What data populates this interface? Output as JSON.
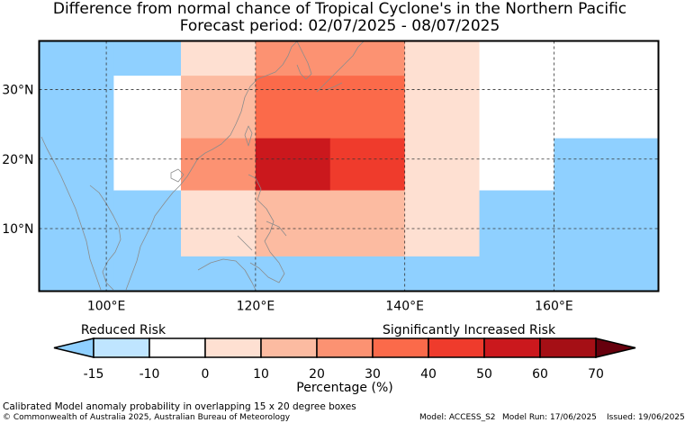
{
  "title": "Difference from normal chance of Tropical Cyclone's in the Northern Pacific",
  "subtitle": "Forecast period: 02/07/2025 - 08/07/2025",
  "map": {
    "lon_range": [
      91,
      174
    ],
    "lat_range": [
      1,
      37
    ],
    "x_ticks": [
      {
        "value": 100,
        "label": "100°E"
      },
      {
        "value": 120,
        "label": "120°E"
      },
      {
        "value": 140,
        "label": "140°E"
      },
      {
        "value": 160,
        "label": "160°E"
      }
    ],
    "y_ticks": [
      {
        "value": 30,
        "label": "30°N"
      },
      {
        "value": 20,
        "label": "20°N"
      },
      {
        "value": 10,
        "label": "10°N"
      }
    ],
    "grid": true
  },
  "grid_cells": [
    {
      "lon": [
        91,
        101
      ],
      "lat": [
        1,
        37
      ],
      "anomaly": -15
    },
    {
      "lon": [
        101,
        110
      ],
      "lat": [
        32,
        37
      ],
      "anomaly": -15
    },
    {
      "lon": [
        101,
        110
      ],
      "lat": [
        15.5,
        32
      ],
      "anomaly": -10
    },
    {
      "lon": [
        101,
        110
      ],
      "lat": [
        1,
        15.5
      ],
      "anomaly": -15
    },
    {
      "lon": [
        110,
        120
      ],
      "lat": [
        32,
        37
      ],
      "anomaly": 5
    },
    {
      "lon": [
        110,
        120
      ],
      "lat": [
        23,
        32
      ],
      "anomaly": 15
    },
    {
      "lon": [
        110,
        120
      ],
      "lat": [
        15.5,
        23
      ],
      "anomaly": 25
    },
    {
      "lon": [
        110,
        120
      ],
      "lat": [
        6,
        15.5
      ],
      "anomaly": 0
    },
    {
      "lon": [
        110,
        120
      ],
      "lat": [
        1,
        6
      ],
      "anomaly": -15
    },
    {
      "lon": [
        120,
        140
      ],
      "lat": [
        32,
        37
      ],
      "anomaly": 25
    },
    {
      "lon": [
        120,
        140
      ],
      "lat": [
        23,
        32
      ],
      "anomaly": 35
    },
    {
      "lon": [
        120,
        130
      ],
      "lat": [
        15.5,
        23
      ],
      "anomaly": 55
    },
    {
      "lon": [
        130,
        140
      ],
      "lat": [
        15.5,
        23
      ],
      "anomaly": 45
    },
    {
      "lon": [
        120,
        140
      ],
      "lat": [
        6,
        15.5
      ],
      "anomaly": 15
    },
    {
      "lon": [
        120,
        140
      ],
      "lat": [
        1,
        6
      ],
      "anomaly": -15
    },
    {
      "lon": [
        140,
        150
      ],
      "lat": [
        32,
        37
      ],
      "anomaly": 0
    },
    {
      "lon": [
        140,
        150
      ],
      "lat": [
        23,
        32
      ],
      "anomaly": 5
    },
    {
      "lon": [
        140,
        150
      ],
      "lat": [
        15.5,
        23
      ],
      "anomaly": 5
    },
    {
      "lon": [
        140,
        150
      ],
      "lat": [
        6,
        15.5
      ],
      "anomaly": 0
    },
    {
      "lon": [
        140,
        150
      ],
      "lat": [
        1,
        6
      ],
      "anomaly": -15
    },
    {
      "lon": [
        150,
        174
      ],
      "lat": [
        32,
        37
      ],
      "anomaly": -10
    },
    {
      "lon": [
        150,
        160
      ],
      "lat": [
        15.5,
        32
      ],
      "anomaly": -10
    },
    {
      "lon": [
        150,
        160
      ],
      "lat": [
        1,
        15.5
      ],
      "anomaly": -15
    },
    {
      "lon": [
        160,
        174
      ],
      "lat": [
        23,
        32
      ],
      "anomaly": -10
    },
    {
      "lon": [
        160,
        174
      ],
      "lat": [
        1,
        23
      ],
      "anomaly": -15
    }
  ],
  "colorbar": {
    "low_label": "Reduced Risk",
    "high_label": "Significantly Increased Risk",
    "axis_label": "Percentage (%)",
    "ticks": [
      "-15",
      "-10",
      "0",
      "10",
      "20",
      "30",
      "40",
      "50",
      "60",
      "70"
    ],
    "bins": [
      {
        "from": -15,
        "to": -10,
        "color": "#bfe5ff"
      },
      {
        "from": -10,
        "to": 0,
        "color": "#ffffff"
      },
      {
        "from": 0,
        "to": 10,
        "color": "#fee0d2"
      },
      {
        "from": 10,
        "to": 20,
        "color": "#fcbba1"
      },
      {
        "from": 20,
        "to": 30,
        "color": "#fc9272"
      },
      {
        "from": 30,
        "to": 40,
        "color": "#fb6a4a"
      },
      {
        "from": 40,
        "to": 50,
        "color": "#ef3b2c"
      },
      {
        "from": 50,
        "to": 60,
        "color": "#cb181d"
      },
      {
        "from": 60,
        "to": 70,
        "color": "#a50f15"
      }
    ],
    "under_color": "#8fd0ff",
    "over_color": "#67000d"
  },
  "footer": {
    "description": "Calibrated Model anomaly probability in overlapping 15 x 20 degree boxes",
    "copyright": "© Commonwealth of Australia 2025, Australian Bureau of Meteorology",
    "model": "Model: ACCESS_S2",
    "model_run": "Model Run: 17/06/2025",
    "issued": "Issued: 19/06/2025"
  }
}
